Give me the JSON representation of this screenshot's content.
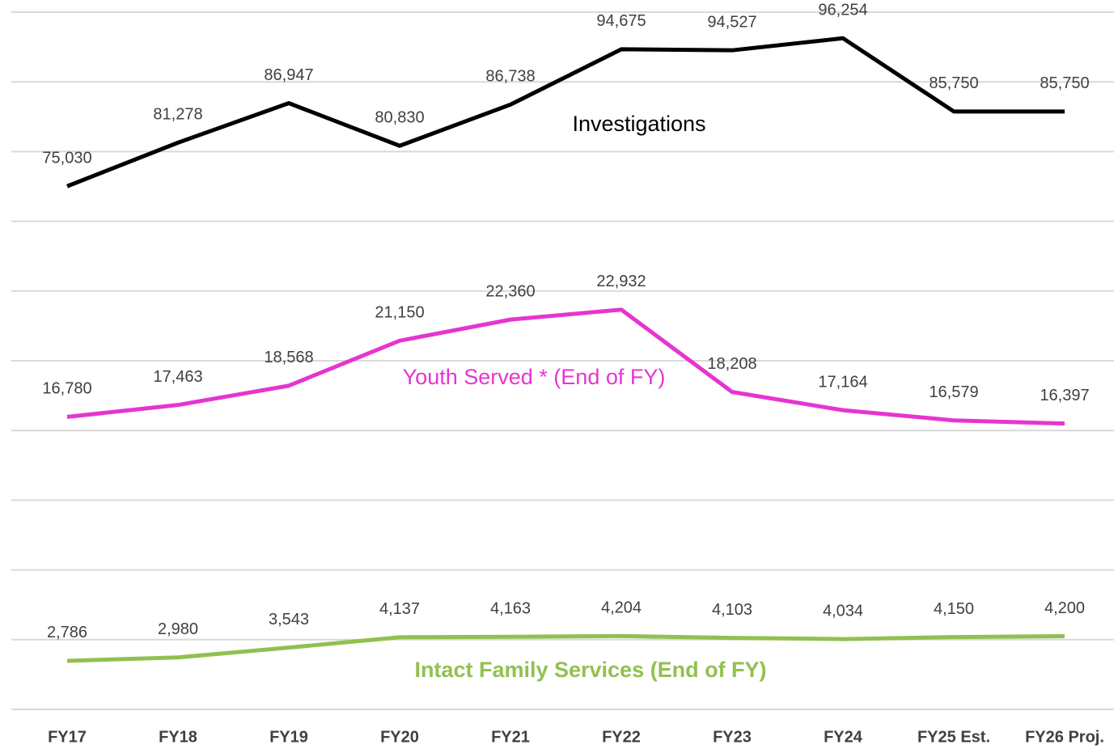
{
  "chart_data": {
    "type": "line",
    "categories": [
      "FY17",
      "FY18",
      "FY19",
      "FY20",
      "FY21",
      "FY22",
      "FY23",
      "FY24",
      "FY25 Est.",
      "FY26 Proj."
    ],
    "series": [
      {
        "name": "Investigations",
        "color": "#000000",
        "values": [
          75030,
          81278,
          86947,
          80830,
          86738,
          94675,
          94527,
          96254,
          85750,
          85750
        ],
        "value_labels": [
          "75,030",
          "81,278",
          "86,947",
          "80,830",
          "86,738",
          "94,675",
          "94,527",
          "96,254",
          "85,750",
          "85,750"
        ]
      },
      {
        "name": "Youth Served * (End of FY)",
        "color": "#e535d1",
        "axis": "y2",
        "values": [
          16780,
          17463,
          18568,
          21150,
          22360,
          22932,
          18208,
          17164,
          16579,
          16397
        ],
        "value_labels": [
          "16,780",
          "17,463",
          "18,568",
          "21,150",
          "22,360",
          "22,932",
          "18,208",
          "17,164",
          "16,579",
          "16,397"
        ]
      },
      {
        "name": "Intact Family Services (End of FY)",
        "color": "#92c050",
        "axis": "y2",
        "values": [
          2786,
          2980,
          3543,
          4137,
          4163,
          4204,
          4103,
          4034,
          4150,
          4200
        ],
        "value_labels": [
          "2,786",
          "2,980",
          "3,543",
          "4,137",
          "4,163",
          "4,204",
          "4,103",
          "4,034",
          "4,150",
          "4,200"
        ]
      }
    ],
    "ylim": [
      0,
      100000
    ],
    "yticks": [
      0,
      10000,
      20000,
      30000,
      40000,
      50000,
      60000,
      70000,
      80000,
      90000,
      100000
    ],
    "y2lim": [
      0,
      40000
    ],
    "grid": true
  }
}
